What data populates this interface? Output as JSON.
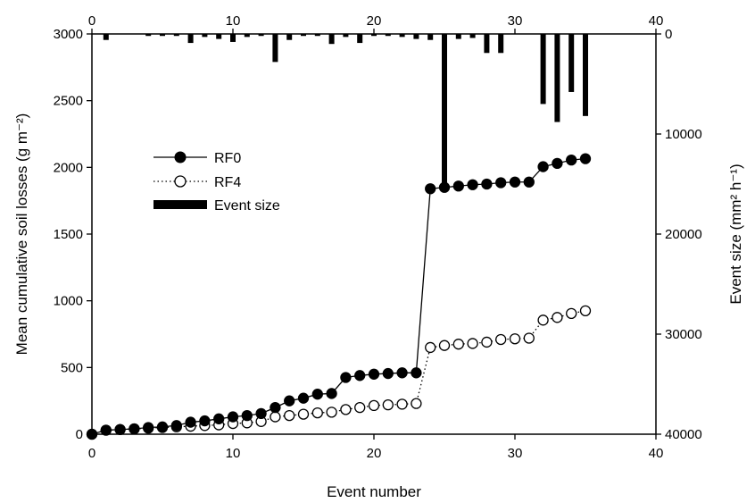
{
  "chart_data": {
    "type": "line",
    "title": "",
    "xlabel": "Event number",
    "ylabel_left": "Mean cumulative soil losses (g m⁻²)",
    "ylabel_right": "Event size (mm² h⁻¹)",
    "xlim": [
      0,
      40
    ],
    "ylim_left": [
      0,
      3000
    ],
    "ylim_right": [
      0,
      40000
    ],
    "right_axis_inverted": true,
    "x_ticks": [
      0,
      10,
      20,
      30,
      40
    ],
    "y_left_ticks": [
      0,
      500,
      1000,
      1500,
      2000,
      2500,
      3000
    ],
    "y_right_ticks": [
      0,
      10000,
      20000,
      30000,
      40000
    ],
    "grid": false,
    "legend_position": "upper-left",
    "series": [
      {
        "name": "RF0",
        "style": "solid line, filled circles",
        "x": [
          0,
          1,
          2,
          3,
          4,
          5,
          6,
          7,
          8,
          9,
          10,
          11,
          12,
          13,
          14,
          15,
          16,
          17,
          18,
          19,
          20,
          21,
          22,
          23,
          24,
          25,
          26,
          27,
          28,
          29,
          30,
          31,
          32,
          33,
          34,
          35
        ],
        "values": [
          0,
          30,
          35,
          40,
          50,
          55,
          65,
          90,
          100,
          115,
          130,
          140,
          155,
          200,
          250,
          270,
          300,
          305,
          425,
          440,
          450,
          455,
          460,
          460,
          1840,
          1850,
          1860,
          1870,
          1875,
          1885,
          1890,
          1890,
          2005,
          2030,
          2055,
          2065
        ]
      },
      {
        "name": "RF4",
        "style": "dotted line, open circles",
        "x": [
          0,
          1,
          2,
          3,
          4,
          5,
          6,
          7,
          8,
          9,
          10,
          11,
          12,
          13,
          14,
          15,
          16,
          17,
          18,
          19,
          20,
          21,
          22,
          23,
          24,
          25,
          26,
          27,
          28,
          29,
          30,
          31,
          32,
          33,
          34,
          35
        ],
        "values": [
          0,
          30,
          35,
          40,
          45,
          50,
          55,
          60,
          65,
          70,
          80,
          85,
          95,
          130,
          140,
          150,
          160,
          165,
          185,
          200,
          215,
          220,
          225,
          230,
          650,
          665,
          675,
          680,
          690,
          710,
          715,
          720,
          855,
          875,
          905,
          925
        ]
      },
      {
        "name": "Event size",
        "style": "bars hanging from top (right axis inverted)",
        "x": [
          1,
          4,
          5,
          6,
          7,
          8,
          9,
          10,
          11,
          12,
          13,
          14,
          15,
          16,
          17,
          18,
          19,
          20,
          21,
          22,
          23,
          24,
          25,
          26,
          27,
          28,
          29,
          32,
          33,
          34,
          35
        ],
        "values": [
          600,
          200,
          200,
          200,
          900,
          300,
          500,
          800,
          300,
          200,
          2800,
          600,
          200,
          200,
          1000,
          300,
          900,
          200,
          200,
          300,
          500,
          600,
          15000,
          500,
          400,
          1900,
          1900,
          7000,
          8800,
          5800,
          8200
        ]
      }
    ]
  },
  "legend": {
    "rf0": "RF0",
    "rf4": "RF4",
    "event": "Event size"
  },
  "colors": {
    "ink": "#000000",
    "background": "#ffffff"
  }
}
